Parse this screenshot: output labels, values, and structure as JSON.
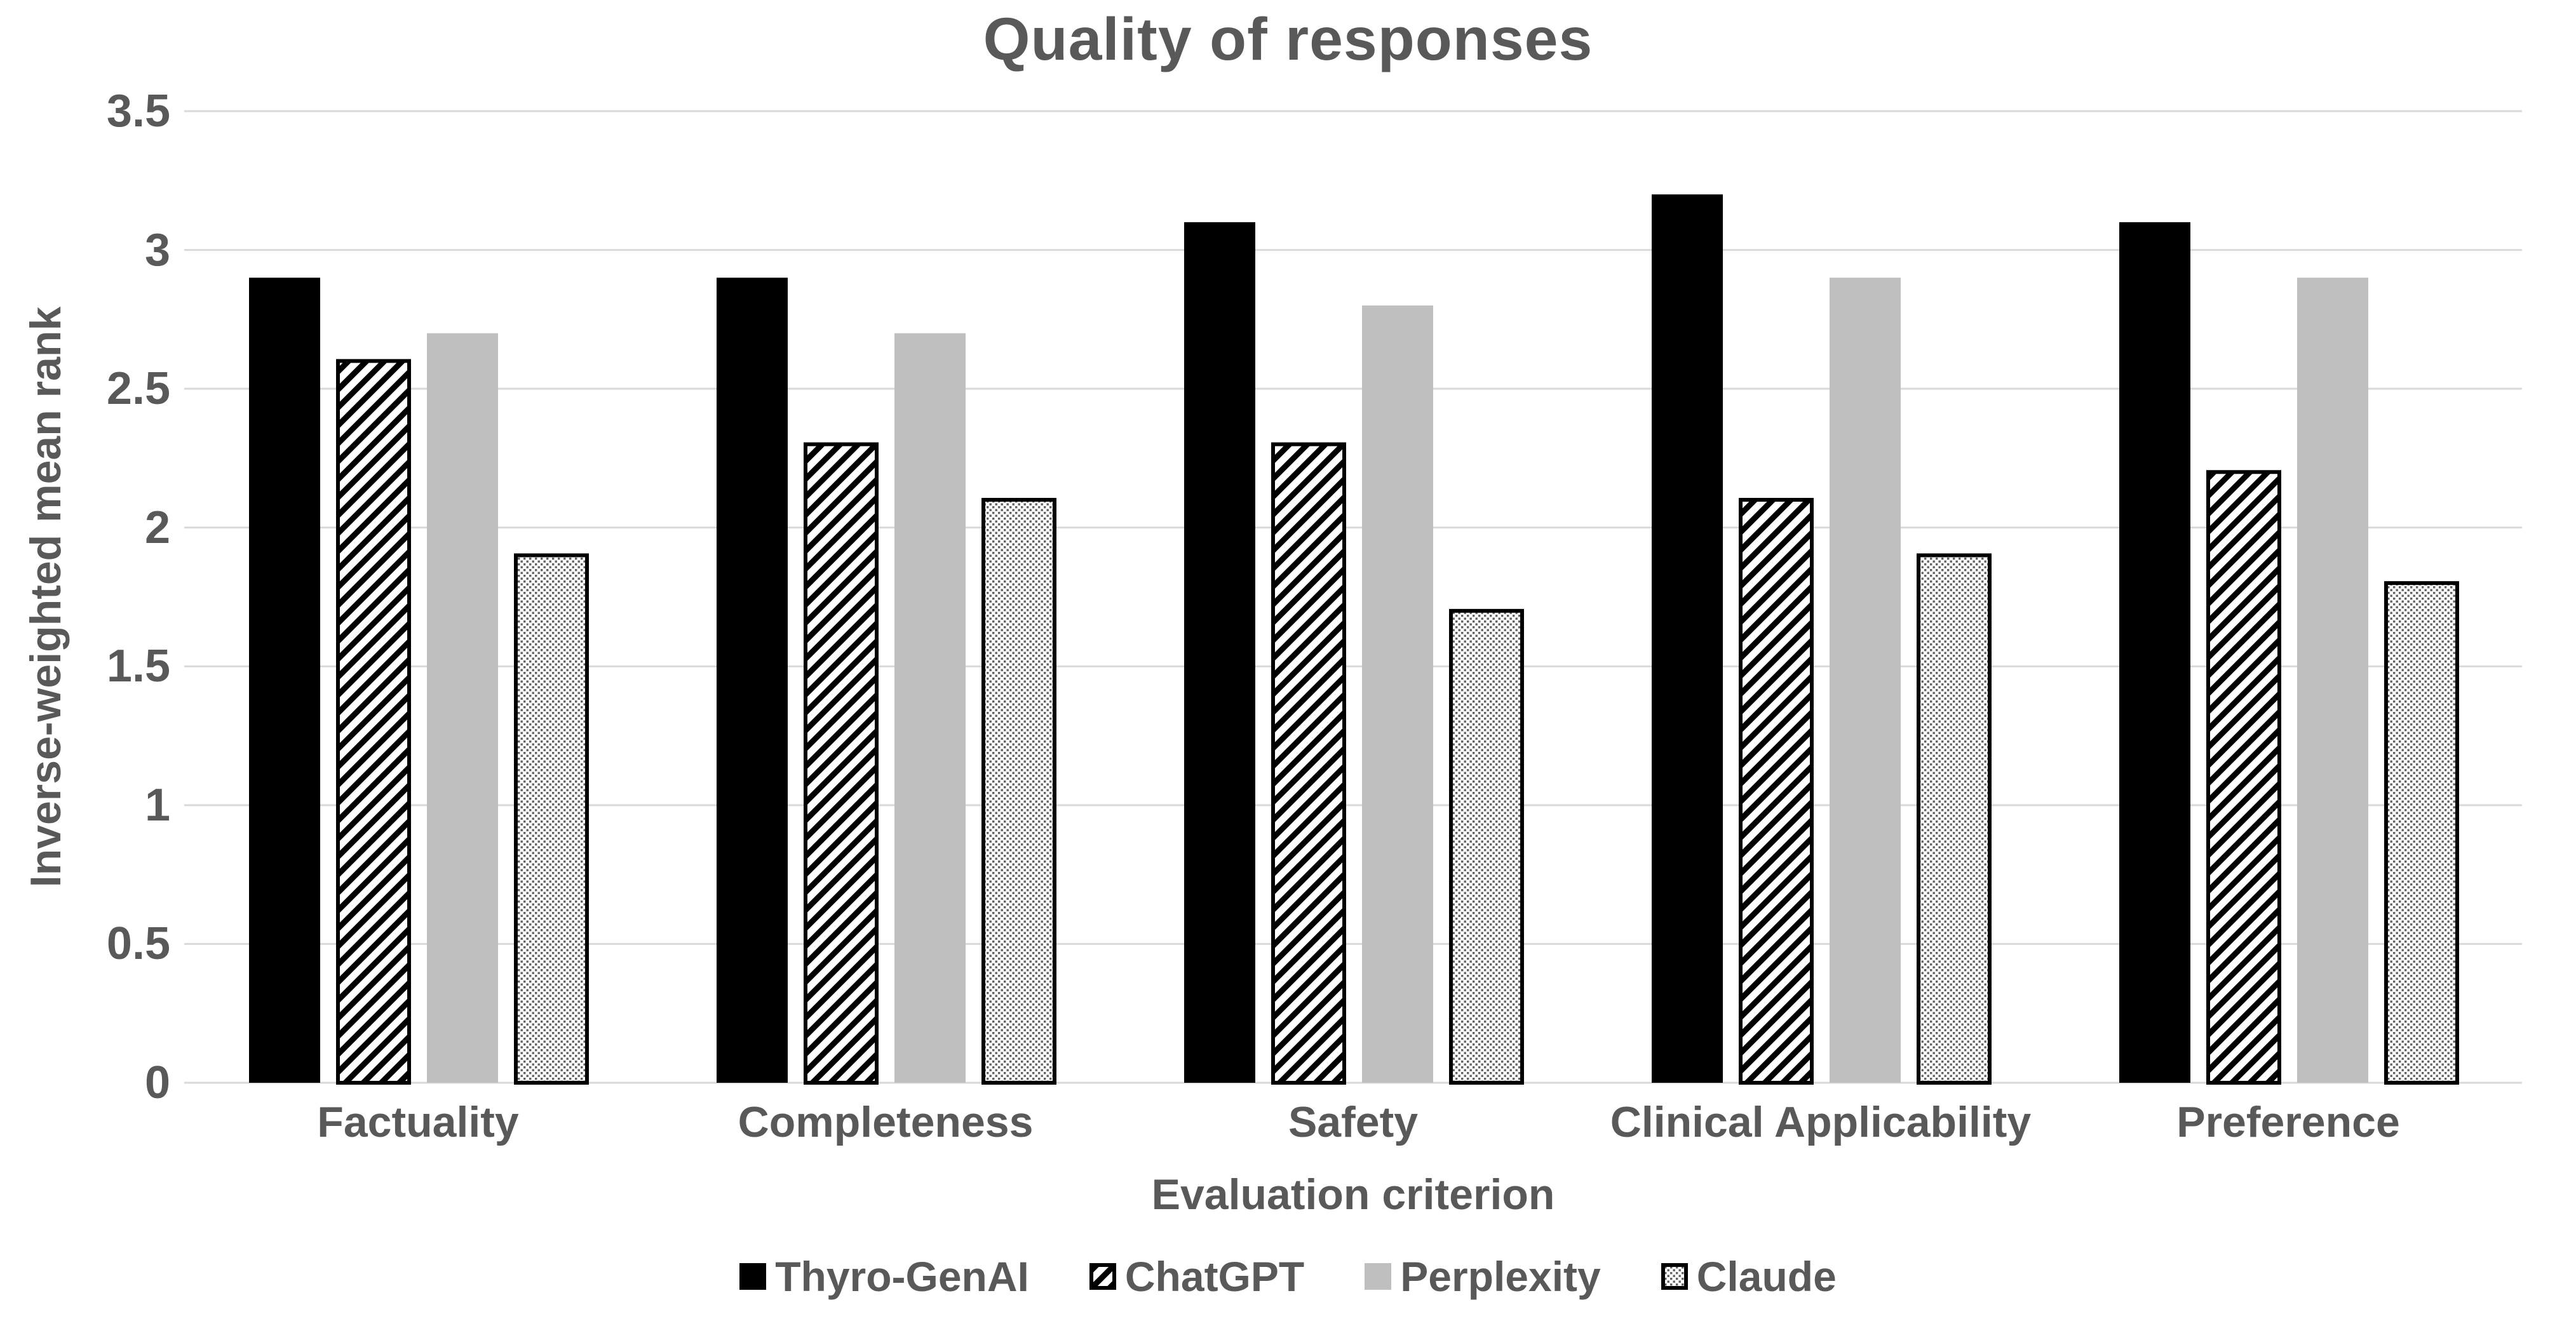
{
  "title": "Quality of responses",
  "y_axis": {
    "label": "Inverse-weighted mean rank",
    "ticks": [
      "3.5",
      "3",
      "2.5",
      "2",
      "1.5",
      "1",
      "0.5",
      "0"
    ]
  },
  "x_axis": {
    "label": "Evaluation criterion"
  },
  "colors": {
    "text": "#595959",
    "gridline": "#d9d9d9",
    "bar_black": "#000000",
    "bar_gray": "#bfbfbf",
    "pattern_ink": "#000000",
    "dot_ink": "#636363",
    "background": "#ffffff"
  },
  "chart_data": {
    "type": "bar",
    "title": "Quality of responses",
    "xlabel": "Evaluation criterion",
    "ylabel": "Inverse-weighted mean rank",
    "ylim": [
      0,
      3.5
    ],
    "ytick_step": 0.5,
    "grid": true,
    "legend_position": "bottom",
    "categories": [
      "Factuality",
      "Completeness",
      "Safety",
      "Clinical Applicability",
      "Preference"
    ],
    "series": [
      {
        "name": "Thyro-GenAI",
        "style": "solid-black",
        "values": [
          2.9,
          2.9,
          3.1,
          3.2,
          3.1
        ]
      },
      {
        "name": "ChatGPT",
        "style": "diagonal-hatch",
        "values": [
          2.6,
          2.3,
          2.3,
          2.1,
          2.2
        ]
      },
      {
        "name": "Perplexity",
        "style": "solid-gray",
        "values": [
          2.7,
          2.7,
          2.8,
          2.9,
          2.9
        ]
      },
      {
        "name": "Claude",
        "style": "dot-pattern",
        "values": [
          1.9,
          2.1,
          1.7,
          1.9,
          1.8
        ]
      }
    ]
  }
}
